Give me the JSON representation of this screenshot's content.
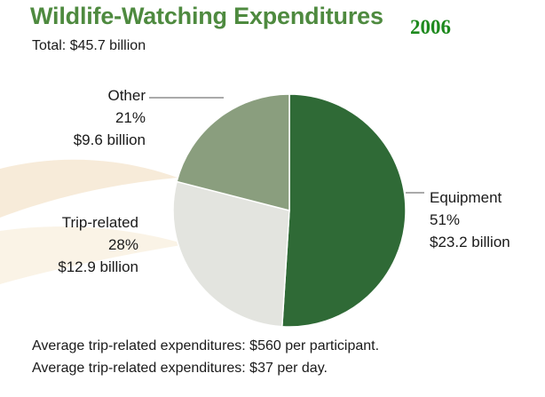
{
  "header": {
    "title": "Wildlife-Watching Expenditures",
    "year": "2006",
    "subtitle": "Total: $45.7 billion"
  },
  "colors": {
    "title": "#4e8a3f",
    "year": "#1e8a1e",
    "equipment": "#2f6a36",
    "trip_related": "#e3e4df",
    "other": "#8a9e7e",
    "background_swoosh": "#f4e3c8"
  },
  "chart_data": {
    "type": "pie",
    "title": "Wildlife-Watching Expenditures",
    "subtitle": "Total: $45.7 billion",
    "total": 45.7,
    "unit": "billion",
    "slices": [
      {
        "name": "Equipment",
        "percent": 51,
        "percent_label": "51%",
        "amount_label": "$23.2 billion",
        "value": 23.2,
        "color": "#2f6a36"
      },
      {
        "name": "Trip-related",
        "percent": 28,
        "percent_label": "28%",
        "amount_label": "$12.9 billion",
        "value": 12.9,
        "color": "#e3e4df"
      },
      {
        "name": "Other",
        "percent": 21,
        "percent_label": "21%",
        "amount_label": "$9.6 billion",
        "value": 9.6,
        "color": "#8a9e7e"
      }
    ]
  },
  "footnotes": [
    "Average trip-related expenditures: $560 per participant.",
    "Average trip-related expenditures: $37 per day."
  ]
}
